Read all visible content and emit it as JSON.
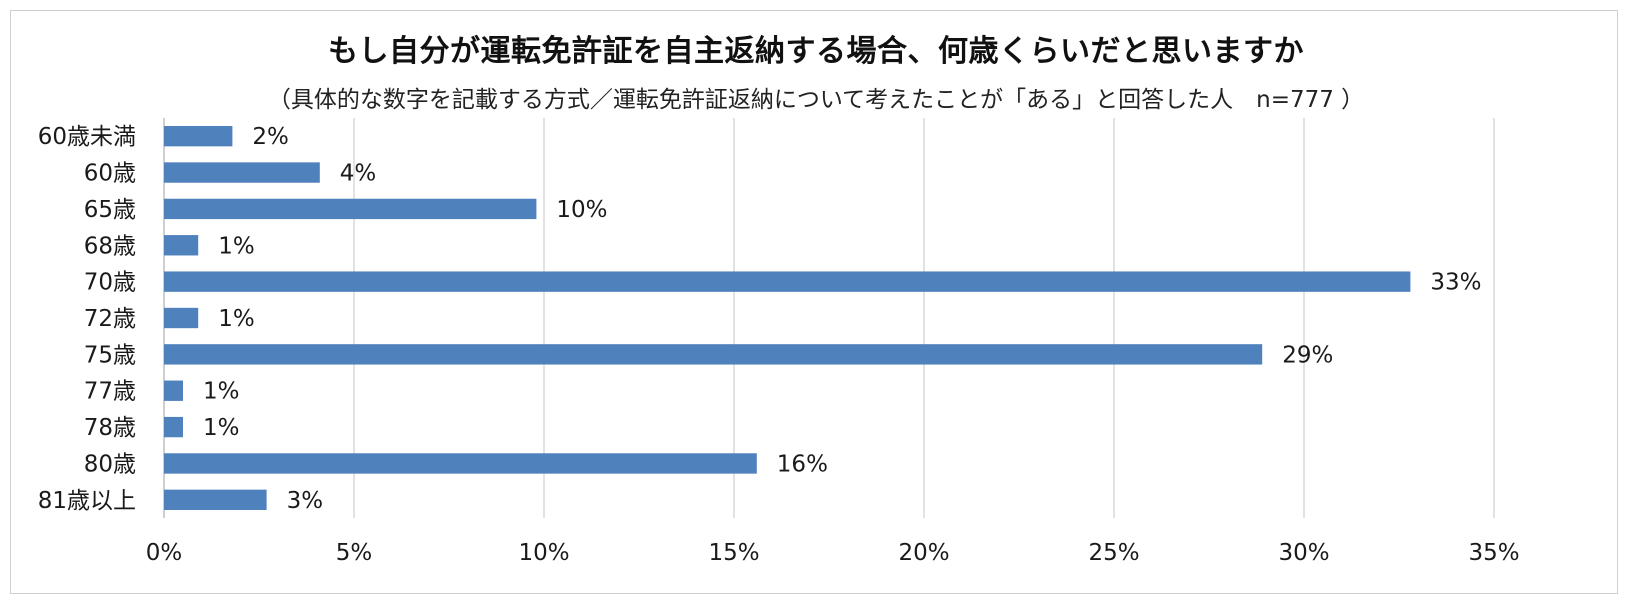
{
  "title": "もし自分が運転免許証を自主返納する場合、何歳くらいだと思いますか",
  "subtitle": "（具体的な数字を記載する方式／運転免許証返納について考えたことが「ある」と回答した人　n=777 ）",
  "colors": {
    "bar": "#4f81bd",
    "grid": "#d9d9d9",
    "axis": "#bfbfbf"
  },
  "chart_data": {
    "type": "bar",
    "orientation": "horizontal",
    "categories": [
      "60歳未満",
      "60歳",
      "65歳",
      "68歳",
      "70歳",
      "72歳",
      "75歳",
      "77歳",
      "78歳",
      "80歳",
      "81歳以上"
    ],
    "values": [
      1.8,
      4.1,
      9.8,
      0.9,
      32.8,
      0.9,
      28.9,
      0.5,
      0.5,
      15.6,
      2.7
    ],
    "data_labels": [
      "2%",
      "4%",
      "10%",
      "1%",
      "33%",
      "1%",
      "29%",
      "1%",
      "1%",
      "16%",
      "3%"
    ],
    "xlim": [
      0,
      35
    ],
    "xticks": [
      0,
      5,
      10,
      15,
      20,
      25,
      30,
      35
    ],
    "xtick_labels": [
      "0%",
      "5%",
      "10%",
      "15%",
      "20%",
      "25%",
      "30%",
      "35%"
    ],
    "grid": true,
    "legend": false
  }
}
